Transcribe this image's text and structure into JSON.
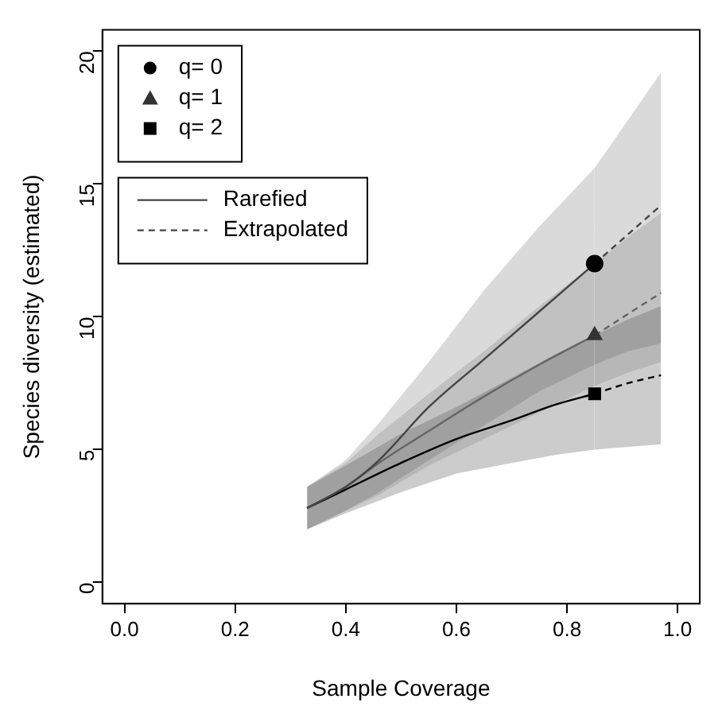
{
  "chart_data": {
    "type": "line",
    "xlabel": "Sample Coverage",
    "ylabel": "Species diversity (estimated)",
    "xlim": [
      -0.04,
      1.04
    ],
    "ylim": [
      -0.8,
      20.8
    ],
    "xticks": [
      {
        "value": 0,
        "label": "0.0"
      },
      {
        "value": 0.2,
        "label": "0.2"
      },
      {
        "value": 0.4,
        "label": "0.4"
      },
      {
        "value": 0.6,
        "label": "0.6"
      },
      {
        "value": 0.8,
        "label": "0.8"
      },
      {
        "value": 1,
        "label": "1.0"
      }
    ],
    "yticks": [
      0,
      5,
      10,
      15,
      20
    ],
    "grid": false,
    "legend": "top left",
    "series": [
      {
        "name": "Rarefied",
        "type": "line",
        "line_style": "solid",
        "color": "#444444",
        "x": [
          0.33,
          0.4,
          0.46,
          0.55,
          0.65,
          0.75,
          0.85
        ],
        "values": [
          2.8,
          3.6,
          4.6,
          6.6,
          8.4,
          10.2,
          12.0
        ],
        "lower": [
          2.0,
          2.7,
          3.4,
          4.6,
          5.9,
          7.2,
          8.2
        ],
        "upper": [
          3.6,
          4.6,
          6.0,
          8.3,
          11.0,
          13.4,
          15.6
        ]
      },
      {
        "type": "line",
        "line_style": "solid",
        "color": "#666666",
        "x": [
          0.33,
          0.4,
          0.46,
          0.55,
          0.65,
          0.75,
          0.85
        ],
        "values": [
          2.8,
          3.6,
          4.5,
          5.7,
          7.0,
          8.2,
          9.3
        ],
        "lower": [
          2.0,
          2.7,
          3.3,
          4.4,
          5.4,
          6.4,
          7.4
        ],
        "upper": [
          3.6,
          4.5,
          5.6,
          7.1,
          8.7,
          10.4,
          12.0
        ]
      },
      {
        "type": "line",
        "line_style": "solid",
        "color": "#000000",
        "x": [
          0.33,
          0.4,
          0.5,
          0.6,
          0.7,
          0.78,
          0.85
        ],
        "values": [
          2.8,
          3.5,
          4.5,
          5.4,
          6.1,
          6.7,
          7.1
        ],
        "lower": [
          2.0,
          2.6,
          3.4,
          4.1,
          4.5,
          4.8,
          5.0
        ],
        "upper": [
          3.6,
          4.4,
          5.6,
          6.6,
          7.7,
          8.6,
          9.3
        ]
      },
      {
        "name": "Extrapolated",
        "type": "line",
        "line_style": "dashed",
        "color": "#444444",
        "x": [
          0.85,
          0.91,
          0.97
        ],
        "values": [
          12.0,
          13.1,
          14.2
        ],
        "lower": [
          8.2,
          8.7,
          9.0
        ],
        "upper": [
          15.6,
          17.4,
          19.2
        ]
      },
      {
        "type": "line",
        "line_style": "dashed",
        "color": "#666666",
        "x": [
          0.85,
          0.91,
          0.97
        ],
        "values": [
          9.3,
          10.1,
          10.9
        ],
        "lower": [
          7.4,
          7.9,
          8.3
        ],
        "upper": [
          12.0,
          13.0,
          13.9
        ]
      },
      {
        "type": "line",
        "line_style": "dashed",
        "color": "#000000",
        "x": [
          0.85,
          0.91,
          0.97
        ],
        "values": [
          7.1,
          7.5,
          7.8
        ],
        "lower": [
          5.0,
          5.1,
          5.2
        ],
        "upper": [
          9.3,
          9.9,
          10.4
        ]
      },
      {
        "name": "q= 0",
        "type": "scatter",
        "marker": "circle",
        "color": "#000000",
        "x": [
          0.85
        ],
        "values": [
          12.0
        ]
      },
      {
        "name": "q= 1",
        "type": "scatter",
        "marker": "triangle",
        "color": "#333333",
        "x": [
          0.85
        ],
        "values": [
          9.3
        ]
      },
      {
        "name": "q= 2",
        "type": "scatter",
        "marker": "square",
        "color": "#000000",
        "x": [
          0.85
        ],
        "values": [
          7.1
        ]
      }
    ]
  }
}
